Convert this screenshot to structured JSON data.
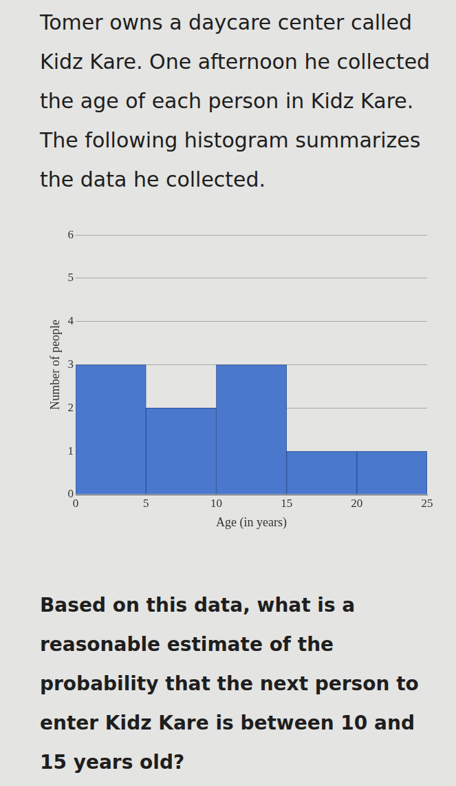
{
  "intro": "Tomer owns a daycare center called Kidz Kare. One afternoon he collected the age of each person in Kidz Kare. The following histogram summarizes the data he collected.",
  "question": "Based on this data, what is a reasonable estimate of the probability that the next person to enter Kidz Kare is between 10 and 15 years old?",
  "chart_data": {
    "type": "histogram",
    "bins": [
      0,
      5,
      10,
      15,
      20,
      25
    ],
    "values": [
      3,
      2,
      3,
      1,
      1
    ],
    "x_label": "Age (in years)",
    "y_label": "Number of people",
    "color": "#4a78cc",
    "xlim": [
      0,
      25
    ],
    "xticks": [
      0,
      5,
      10,
      15,
      20,
      25
    ],
    "ylim": [
      0,
      6
    ],
    "yticks": [
      0,
      1,
      2,
      3,
      4,
      5,
      6
    ],
    "grid": true
  }
}
